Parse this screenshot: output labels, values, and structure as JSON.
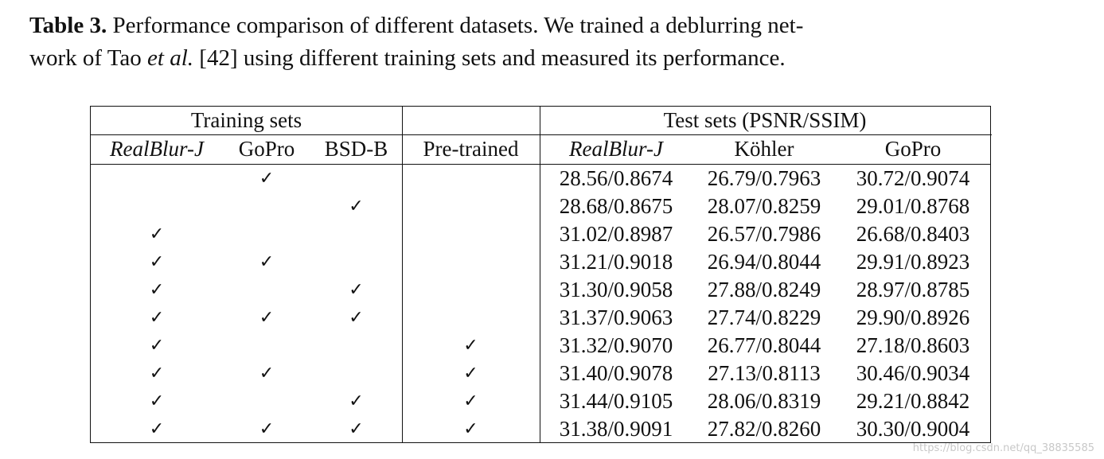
{
  "caption": {
    "label": "Table 3.",
    "line1_text": " Performance comparison of different datasets. We trained a deblurring net-",
    "line2_a": "work of Tao ",
    "line2_etal": "et al.",
    "line2_b": " [42] using different training sets and measured its performance."
  },
  "table": {
    "group_training": "Training sets",
    "group_test": "Test sets (PSNR/SSIM)",
    "col_headers": [
      "RealBlur-J",
      "GoPro",
      "BSD-B",
      "Pre-trained",
      "RealBlur-J",
      "Köhler",
      "GoPro"
    ],
    "check_symbol": "✓",
    "rows": [
      {
        "realblur": false,
        "gopro": true,
        "bsdb": false,
        "pretrained": false,
        "r": "28.56/0.8674",
        "k": "26.79/0.7963",
        "g": "30.72/0.9074"
      },
      {
        "realblur": false,
        "gopro": false,
        "bsdb": true,
        "pretrained": false,
        "r": "28.68/0.8675",
        "k": "28.07/0.8259",
        "g": "29.01/0.8768"
      },
      {
        "realblur": true,
        "gopro": false,
        "bsdb": false,
        "pretrained": false,
        "r": "31.02/0.8987",
        "k": "26.57/0.7986",
        "g": "26.68/0.8403"
      },
      {
        "realblur": true,
        "gopro": true,
        "bsdb": false,
        "pretrained": false,
        "r": "31.21/0.9018",
        "k": "26.94/0.8044",
        "g": "29.91/0.8923"
      },
      {
        "realblur": true,
        "gopro": false,
        "bsdb": true,
        "pretrained": false,
        "r": "31.30/0.9058",
        "k": "27.88/0.8249",
        "g": "28.97/0.8785"
      },
      {
        "realblur": true,
        "gopro": true,
        "bsdb": true,
        "pretrained": false,
        "r": "31.37/0.9063",
        "k": "27.74/0.8229",
        "g": "29.90/0.8926"
      },
      {
        "realblur": true,
        "gopro": false,
        "bsdb": false,
        "pretrained": true,
        "r": "31.32/0.9070",
        "k": "26.77/0.8044",
        "g": "27.18/0.8603"
      },
      {
        "realblur": true,
        "gopro": true,
        "bsdb": false,
        "pretrained": true,
        "r": "31.40/0.9078",
        "k": "27.13/0.8113",
        "g": "30.46/0.9034"
      },
      {
        "realblur": true,
        "gopro": false,
        "bsdb": true,
        "pretrained": true,
        "r": "31.44/0.9105",
        "k": "28.06/0.8319",
        "g": "29.21/0.8842"
      },
      {
        "realblur": true,
        "gopro": true,
        "bsdb": true,
        "pretrained": true,
        "r": "31.38/0.9091",
        "k": "27.82/0.8260",
        "g": "30.30/0.9004"
      }
    ]
  },
  "watermark": "https://blog.csdn.net/qq_38835585"
}
